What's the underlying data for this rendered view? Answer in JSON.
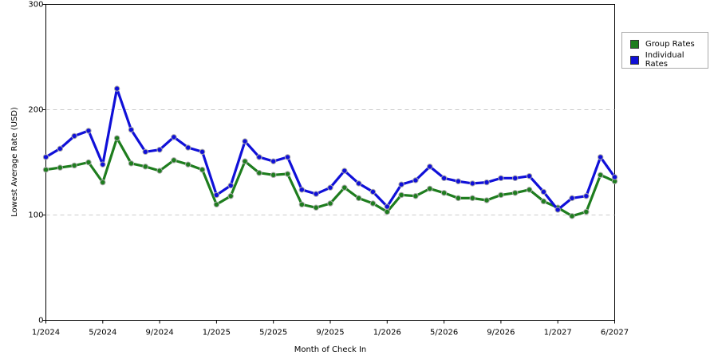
{
  "chart_data": {
    "type": "line",
    "title": "",
    "xlabel": "Month of Check In",
    "ylabel": "Lowest Average Rate (USD)",
    "ylim": [
      0,
      300
    ],
    "yticks": [
      "0",
      "100",
      "200",
      "300"
    ],
    "xtick_labels": [
      "1/2024",
      "5/2024",
      "9/2024",
      "1/2025",
      "5/2025",
      "9/2025",
      "1/2026",
      "5/2026",
      "9/2026",
      "1/2027",
      "6/2027"
    ],
    "xtick_index": [
      0,
      4,
      8,
      12,
      16,
      20,
      24,
      28,
      32,
      36,
      40
    ],
    "x": [
      "1/2024",
      "2/2024",
      "3/2024",
      "4/2024",
      "5/2024",
      "6/2024",
      "7/2024",
      "8/2024",
      "9/2024",
      "10/2024",
      "11/2024",
      "12/2024",
      "1/2025",
      "2/2025",
      "3/2025",
      "4/2025",
      "5/2025",
      "6/2025",
      "7/2025",
      "8/2025",
      "9/2025",
      "10/2025",
      "11/2025",
      "12/2025",
      "1/2026",
      "2/2026",
      "3/2026",
      "4/2026",
      "5/2026",
      "6/2026",
      "7/2026",
      "8/2026",
      "9/2026",
      "10/2026",
      "11/2026",
      "12/2026",
      "1/2027",
      "2/2027",
      "3/2027",
      "4/2027",
      "6/2027"
    ],
    "grid": true,
    "legend_position": "right",
    "series": [
      {
        "name": "Group Rates",
        "color": "#1e7d1e",
        "values": [
          143,
          145,
          147,
          150,
          131,
          173,
          149,
          146,
          142,
          152,
          148,
          143,
          110,
          118,
          151,
          140,
          138,
          139,
          110,
          107,
          111,
          126,
          116,
          111,
          103,
          119,
          118,
          125,
          121,
          116,
          116,
          114,
          119,
          121,
          124,
          113,
          107,
          99,
          103,
          138,
          132
        ]
      },
      {
        "name": "Individual Rates",
        "color": "#1010d8",
        "values": [
          155,
          163,
          175,
          180,
          148,
          220,
          181,
          160,
          162,
          174,
          164,
          160,
          119,
          128,
          170,
          155,
          151,
          155,
          124,
          120,
          126,
          142,
          130,
          122,
          108,
          129,
          133,
          146,
          135,
          132,
          130,
          131,
          135,
          135,
          137,
          122,
          105,
          116,
          118,
          155,
          136
        ]
      }
    ]
  }
}
